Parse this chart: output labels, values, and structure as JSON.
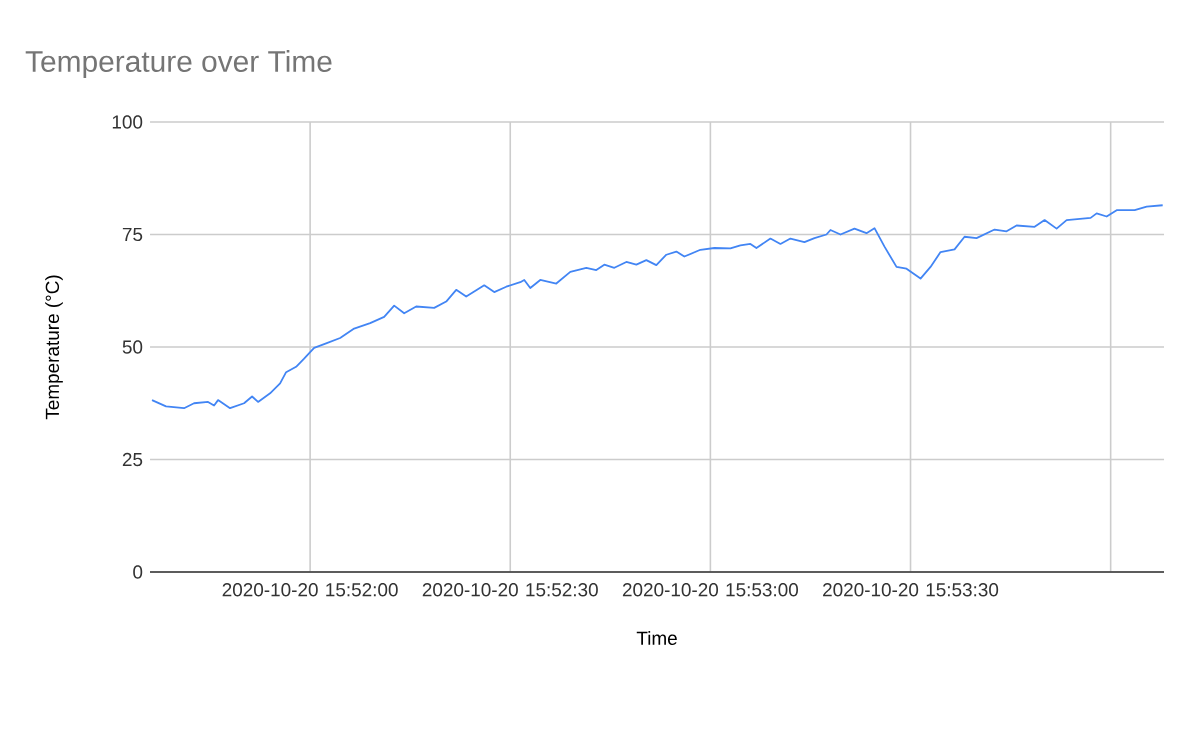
{
  "chart_data": {
    "type": "line",
    "title": "Temperature over Time",
    "xlabel": "Time",
    "ylabel": "Temperature (°C)",
    "x": [
      "2020-10-20T15:51:36.3",
      "2020-10-20T15:51:38.4",
      "2020-10-20T15:51:41.1",
      "2020-10-20T15:51:42.6",
      "2020-10-20T15:51:44.7",
      "2020-10-20T15:51:45.6",
      "2020-10-20T15:51:46.2",
      "2020-10-20T15:51:48.0",
      "2020-10-20T15:51:50.1",
      "2020-10-20T15:51:51.3",
      "2020-10-20T15:51:52.2",
      "2020-10-20T15:51:54.0",
      "2020-10-20T15:51:55.5",
      "2020-10-20T15:51:56.4",
      "2020-10-20T15:51:57.9",
      "2020-10-20T15:51:59.1",
      "2020-10-20T15:52:00.6",
      "2020-10-20T15:52:02.4",
      "2020-10-20T15:52:04.5",
      "2020-10-20T15:52:06.6",
      "2020-10-20T15:52:09.0",
      "2020-10-20T15:52:11.1",
      "2020-10-20T15:52:12.6",
      "2020-10-20T15:52:14.1",
      "2020-10-20T15:52:15.9",
      "2020-10-20T15:52:18.6",
      "2020-10-20T15:52:20.4",
      "2020-10-20T15:52:21.9",
      "2020-10-20T15:52:23.4",
      "2020-10-20T15:52:26.1",
      "2020-10-20T15:52:27.6",
      "2020-10-20T15:52:29.4",
      "2020-10-20T15:52:31.5",
      "2020-10-20T15:52:32.1",
      "2020-10-20T15:52:33.0",
      "2020-10-20T15:52:34.5",
      "2020-10-20T15:52:36.9",
      "2020-10-20T15:52:39.0",
      "2020-10-20T15:52:41.4",
      "2020-10-20T15:52:42.9",
      "2020-10-20T15:52:44.1",
      "2020-10-20T15:52:45.6",
      "2020-10-20T15:52:47.4",
      "2020-10-20T15:52:48.9",
      "2020-10-20T15:52:50.4",
      "2020-10-20T15:52:51.9",
      "2020-10-20T15:52:53.4",
      "2020-10-20T15:52:54.9",
      "2020-10-20T15:52:56.1",
      "2020-10-20T15:52:58.5",
      "2020-10-20T15:53:00.6",
      "2020-10-20T15:53:03.0",
      "2020-10-20T15:53:04.5",
      "2020-10-20T15:53:06.0",
      "2020-10-20T15:53:06.9",
      "2020-10-20T15:53:09.0",
      "2020-10-20T15:53:10.5",
      "2020-10-20T15:53:12.0",
      "2020-10-20T15:53:14.1",
      "2020-10-20T15:53:15.6",
      "2020-10-20T15:53:17.4",
      "2020-10-20T15:53:18.0",
      "2020-10-20T15:53:19.5",
      "2020-10-20T15:53:21.6",
      "2020-10-20T15:53:23.4",
      "2020-10-20T15:53:24.6",
      "2020-10-20T15:53:26.1",
      "2020-10-20T15:53:27.9",
      "2020-10-20T15:53:29.4",
      "2020-10-20T15:53:31.5",
      "2020-10-20T15:53:33.0",
      "2020-10-20T15:53:34.5",
      "2020-10-20T15:53:36.6",
      "2020-10-20T15:53:38.1",
      "2020-10-20T15:53:39.9",
      "2020-10-20T15:53:42.6",
      "2020-10-20T15:53:44.4",
      "2020-10-20T15:53:45.9",
      "2020-10-20T15:53:48.6",
      "2020-10-20T15:53:50.1",
      "2020-10-20T15:53:51.9",
      "2020-10-20T15:53:53.4",
      "2020-10-20T15:53:57.0",
      "2020-10-20T15:53:57.9",
      "2020-10-20T15:53:59.4",
      "2020-10-20T15:54:00.9",
      "2020-10-20T15:54:03.6",
      "2020-10-20T15:54:05.4",
      "2020-10-20T15:54:07.8"
    ],
    "series": [
      {
        "color": "#4285f4",
        "values": [
          38.2,
          36.8,
          36.4,
          37.5,
          37.8,
          37.0,
          38.2,
          36.4,
          37.5,
          39.0,
          37.8,
          39.7,
          41.9,
          44.4,
          45.6,
          47.4,
          49.8,
          50.8,
          52.0,
          54.1,
          55.3,
          56.7,
          59.2,
          57.5,
          59.0,
          58.7,
          60.1,
          62.7,
          61.2,
          63.7,
          62.2,
          63.4,
          64.4,
          64.9,
          63.1,
          64.9,
          64.1,
          66.7,
          67.6,
          67.1,
          68.3,
          67.6,
          68.9,
          68.3,
          69.3,
          68.2,
          70.5,
          71.2,
          70.1,
          71.6,
          72.0,
          71.9,
          72.6,
          72.9,
          72.0,
          74.1,
          72.9,
          74.1,
          73.3,
          74.2,
          75.0,
          76.0,
          75.0,
          76.3,
          75.3,
          76.4,
          72.3,
          67.8,
          67.4,
          65.2,
          67.8,
          71.1,
          71.7,
          74.5,
          74.2,
          76.1,
          75.7,
          77.0,
          76.7,
          78.2,
          76.3,
          78.2,
          78.7,
          79.7,
          79.0,
          80.4,
          80.4,
          81.2,
          81.5
        ]
      }
    ],
    "xlim": [
      "2020-10-20T15:51:36",
      "2020-10-20T15:54:08"
    ],
    "ylim": [
      0,
      100
    ],
    "yticks": [
      0,
      25,
      50,
      75,
      100
    ],
    "xticks": [
      {
        "value": "2020-10-20T15:52:00",
        "label": "2020-10-20 15:52:00"
      },
      {
        "value": "2020-10-20T15:52:30",
        "label": "2020-10-20 15:52:30"
      },
      {
        "value": "2020-10-20T15:53:00",
        "label": "2020-10-20 15:53:00"
      },
      {
        "value": "2020-10-20T15:53:30",
        "label": "2020-10-20 15:53:30"
      },
      {
        "value": "2020-10-20T15:54:00",
        "label": null
      }
    ],
    "grid": true,
    "marker": "none",
    "line_style": "solid"
  }
}
